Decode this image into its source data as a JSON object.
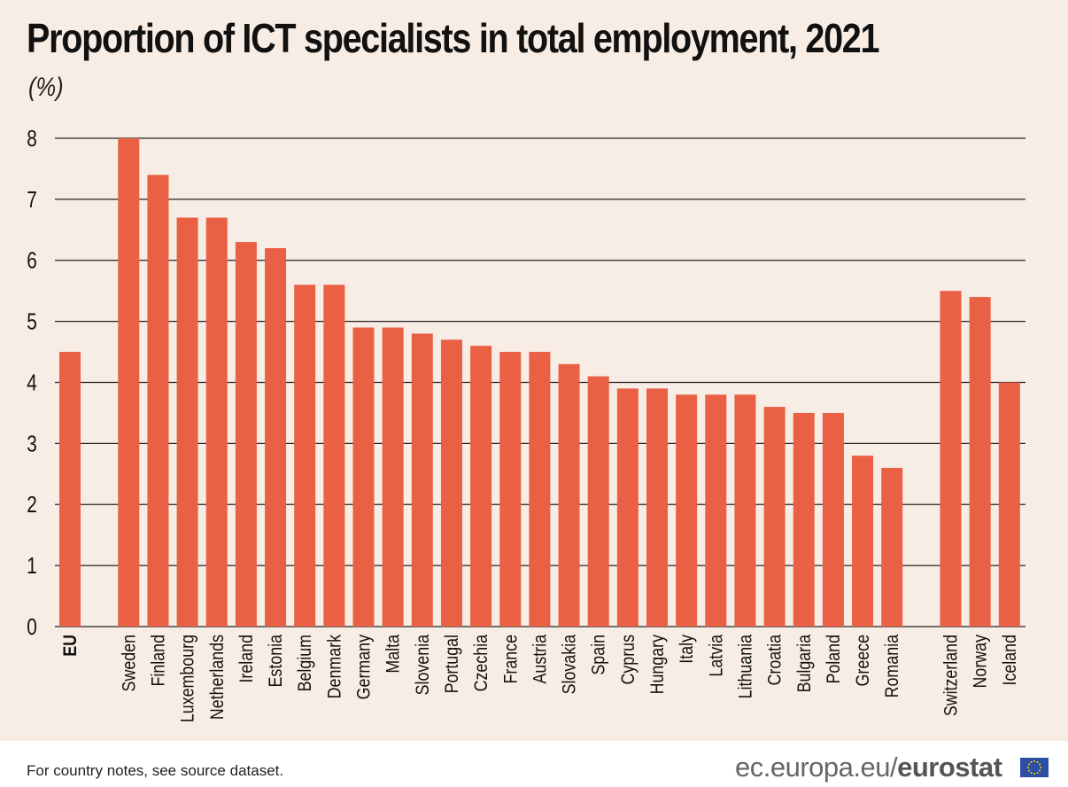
{
  "chart_data": {
    "type": "bar",
    "title": "Proportion of ICT specialists in total employment, 2021",
    "ylabel": "(%)",
    "ylim": [
      0,
      8
    ],
    "yticks": [
      "0",
      "1",
      "2",
      "3",
      "4",
      "5",
      "6",
      "7",
      "8"
    ],
    "grid": true,
    "bar_color": "#ea6045",
    "categories": [
      "EU",
      "Sweden",
      "Finland",
      "Luxembourg",
      "Netherlands",
      "Ireland",
      "Estonia",
      "Belgium",
      "Denmark",
      "Germany",
      "Malta",
      "Slovenia",
      "Portugal",
      "Czechia",
      "France",
      "Austria",
      "Slovakia",
      "Spain",
      "Cyprus",
      "Hungary",
      "Italy",
      "Latvia",
      "Lithuania",
      "Croatia",
      "Bulgaria",
      "Poland",
      "Greece",
      "Romania",
      "Switzerland",
      "Norway",
      "Iceland"
    ],
    "values": [
      4.5,
      8.0,
      7.4,
      6.7,
      6.7,
      6.3,
      6.2,
      5.6,
      5.6,
      4.9,
      4.9,
      4.8,
      4.7,
      4.6,
      4.5,
      4.5,
      4.3,
      4.1,
      3.9,
      3.9,
      3.8,
      3.8,
      3.8,
      3.6,
      3.5,
      3.5,
      2.8,
      2.6,
      5.5,
      5.4,
      4.0
    ],
    "groups": [
      [
        "EU"
      ],
      [
        "Sweden",
        "Romania"
      ],
      [
        "Switzerland",
        "Iceland"
      ]
    ]
  },
  "footer": {
    "note": "For country notes, see source dataset.",
    "source_prefix": "ec.europa.eu/",
    "source_brand": "eurostat"
  },
  "colors": {
    "background": "#f8ede4",
    "bar": "#ea6045",
    "flag": "#2c4ea3"
  }
}
